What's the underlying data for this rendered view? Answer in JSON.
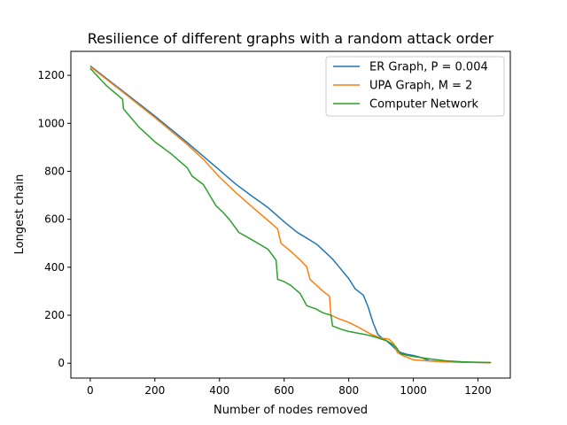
{
  "chart_data": {
    "type": "line",
    "title": "Resilience of different graphs with a random attack order",
    "xlabel": "Number of nodes removed",
    "ylabel": "Longest chain",
    "xlim": [
      -60,
      1300
    ],
    "ylim": [
      -62,
      1300
    ],
    "xticks": [
      0,
      200,
      400,
      600,
      800,
      1000,
      1200
    ],
    "yticks": [
      0,
      200,
      400,
      600,
      800,
      1000,
      1200
    ],
    "grid": false,
    "legend_position": "top-right",
    "series": [
      {
        "name": "ER Graph, P = 0.004",
        "color": "#1f77b4",
        "points": [
          [
            0,
            1239
          ],
          [
            100,
            1135
          ],
          [
            200,
            1030
          ],
          [
            300,
            920
          ],
          [
            400,
            805
          ],
          [
            450,
            747
          ],
          [
            500,
            697
          ],
          [
            550,
            649
          ],
          [
            600,
            590
          ],
          [
            640,
            546
          ],
          [
            700,
            497
          ],
          [
            750,
            434
          ],
          [
            800,
            353
          ],
          [
            820,
            310
          ],
          [
            845,
            284
          ],
          [
            860,
            235
          ],
          [
            875,
            170
          ],
          [
            890,
            120
          ],
          [
            905,
            103
          ],
          [
            920,
            90
          ],
          [
            935,
            72
          ],
          [
            948,
            55
          ],
          [
            960,
            45
          ],
          [
            980,
            37
          ],
          [
            1000,
            32
          ],
          [
            1020,
            25
          ],
          [
            1040,
            15
          ],
          [
            1050,
            10
          ],
          [
            1100,
            6
          ],
          [
            1150,
            4
          ],
          [
            1200,
            3
          ],
          [
            1240,
            2
          ]
        ]
      },
      {
        "name": "UPA Graph, M = 2",
        "color": "#ff7f0e",
        "points": [
          [
            0,
            1236
          ],
          [
            100,
            1131
          ],
          [
            200,
            1024
          ],
          [
            300,
            912
          ],
          [
            350,
            850
          ],
          [
            400,
            776
          ],
          [
            450,
            712
          ],
          [
            500,
            653
          ],
          [
            550,
            595
          ],
          [
            580,
            560
          ],
          [
            590,
            500
          ],
          [
            620,
            467
          ],
          [
            650,
            430
          ],
          [
            670,
            402
          ],
          [
            680,
            350
          ],
          [
            700,
            325
          ],
          [
            720,
            300
          ],
          [
            740,
            280
          ],
          [
            745,
            200
          ],
          [
            770,
            185
          ],
          [
            800,
            170
          ],
          [
            830,
            150
          ],
          [
            870,
            120
          ],
          [
            900,
            105
          ],
          [
            925,
            100
          ],
          [
            940,
            80
          ],
          [
            950,
            45
          ],
          [
            970,
            30
          ],
          [
            990,
            20
          ],
          [
            1000,
            14
          ],
          [
            1050,
            9
          ],
          [
            1100,
            6
          ],
          [
            1150,
            4
          ],
          [
            1200,
            3
          ],
          [
            1240,
            2
          ]
        ]
      },
      {
        "name": "Computer Network",
        "color": "#2ca02c",
        "points": [
          [
            0,
            1229
          ],
          [
            50,
            1157
          ],
          [
            100,
            1100
          ],
          [
            103,
            1060
          ],
          [
            150,
            985
          ],
          [
            200,
            923
          ],
          [
            250,
            873
          ],
          [
            300,
            815
          ],
          [
            315,
            780
          ],
          [
            350,
            745
          ],
          [
            370,
            700
          ],
          [
            390,
            655
          ],
          [
            410,
            630
          ],
          [
            430,
            600
          ],
          [
            460,
            545
          ],
          [
            500,
            515
          ],
          [
            550,
            475
          ],
          [
            575,
            430
          ],
          [
            580,
            350
          ],
          [
            600,
            340
          ],
          [
            620,
            325
          ],
          [
            650,
            290
          ],
          [
            670,
            240
          ],
          [
            700,
            225
          ],
          [
            720,
            210
          ],
          [
            745,
            200
          ],
          [
            750,
            155
          ],
          [
            780,
            140
          ],
          [
            800,
            132
          ],
          [
            850,
            120
          ],
          [
            880,
            110
          ],
          [
            920,
            92
          ],
          [
            945,
            70
          ],
          [
            960,
            40
          ],
          [
            980,
            33
          ],
          [
            1000,
            28
          ],
          [
            1050,
            18
          ],
          [
            1100,
            10
          ],
          [
            1150,
            6
          ],
          [
            1200,
            4
          ],
          [
            1240,
            3
          ]
        ]
      }
    ]
  }
}
